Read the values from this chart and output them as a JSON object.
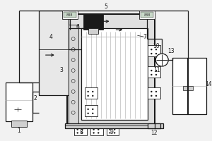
{
  "bg_color": "#f2f2f2",
  "dc": "#1a1a1a",
  "wc": "#ffffff",
  "lgc": "#bbbbbb",
  "gc": "#888888",
  "med_gray": "#d0d0d0"
}
